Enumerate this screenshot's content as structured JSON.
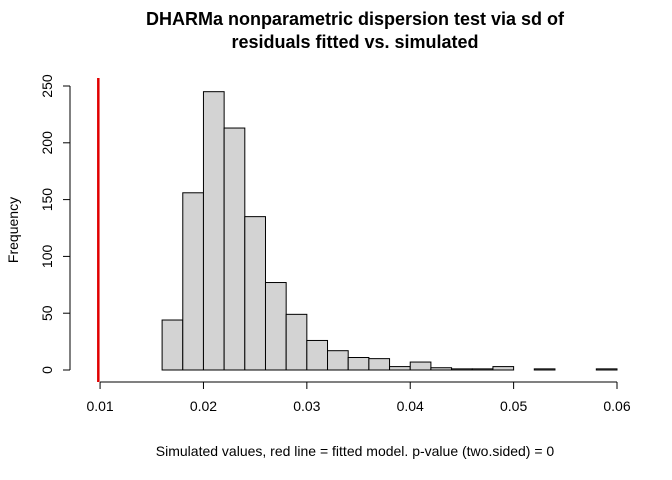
{
  "chart_data": {
    "type": "histogram",
    "title_lines": [
      "DHARMa nonparametric dispersion test via sd of",
      "residuals fitted vs. simulated"
    ],
    "xlabel": "Simulated values, red line = fitted model. p-value (two.sided) = 0",
    "ylabel": "Frequency",
    "xlim": [
      0.0098,
      0.06
    ],
    "ylim": [
      0,
      250
    ],
    "x_ticks": [
      0.01,
      0.02,
      0.03,
      0.04,
      0.05,
      0.06
    ],
    "x_tick_labels": [
      "0.01",
      "0.02",
      "0.03",
      "0.04",
      "0.05",
      "0.06"
    ],
    "y_ticks": [
      0,
      50,
      100,
      150,
      200,
      250
    ],
    "y_tick_labels": [
      "0",
      "50",
      "100",
      "150",
      "200",
      "250"
    ],
    "bins": [
      {
        "x0": 0.016,
        "x1": 0.018,
        "count": 44
      },
      {
        "x0": 0.018,
        "x1": 0.02,
        "count": 156
      },
      {
        "x0": 0.02,
        "x1": 0.022,
        "count": 245
      },
      {
        "x0": 0.022,
        "x1": 0.024,
        "count": 213
      },
      {
        "x0": 0.024,
        "x1": 0.026,
        "count": 135
      },
      {
        "x0": 0.026,
        "x1": 0.028,
        "count": 77
      },
      {
        "x0": 0.028,
        "x1": 0.03,
        "count": 49
      },
      {
        "x0": 0.03,
        "x1": 0.032,
        "count": 26
      },
      {
        "x0": 0.032,
        "x1": 0.034,
        "count": 17
      },
      {
        "x0": 0.034,
        "x1": 0.036,
        "count": 11
      },
      {
        "x0": 0.036,
        "x1": 0.038,
        "count": 10
      },
      {
        "x0": 0.038,
        "x1": 0.04,
        "count": 3
      },
      {
        "x0": 0.04,
        "x1": 0.042,
        "count": 7
      },
      {
        "x0": 0.042,
        "x1": 0.044,
        "count": 2
      },
      {
        "x0": 0.044,
        "x1": 0.046,
        "count": 1
      },
      {
        "x0": 0.046,
        "x1": 0.048,
        "count": 1
      },
      {
        "x0": 0.048,
        "x1": 0.05,
        "count": 3
      },
      {
        "x0": 0.05,
        "x1": 0.052,
        "count": 0
      },
      {
        "x0": 0.052,
        "x1": 0.054,
        "count": 1
      },
      {
        "x0": 0.054,
        "x1": 0.056,
        "count": 0
      },
      {
        "x0": 0.056,
        "x1": 0.058,
        "count": 0
      },
      {
        "x0": 0.058,
        "x1": 0.06,
        "count": 1
      }
    ],
    "reference_line": {
      "x": 0.00983,
      "color": "#e00000"
    },
    "bar_color": "#d3d3d3",
    "grid": false,
    "legend": "none"
  }
}
